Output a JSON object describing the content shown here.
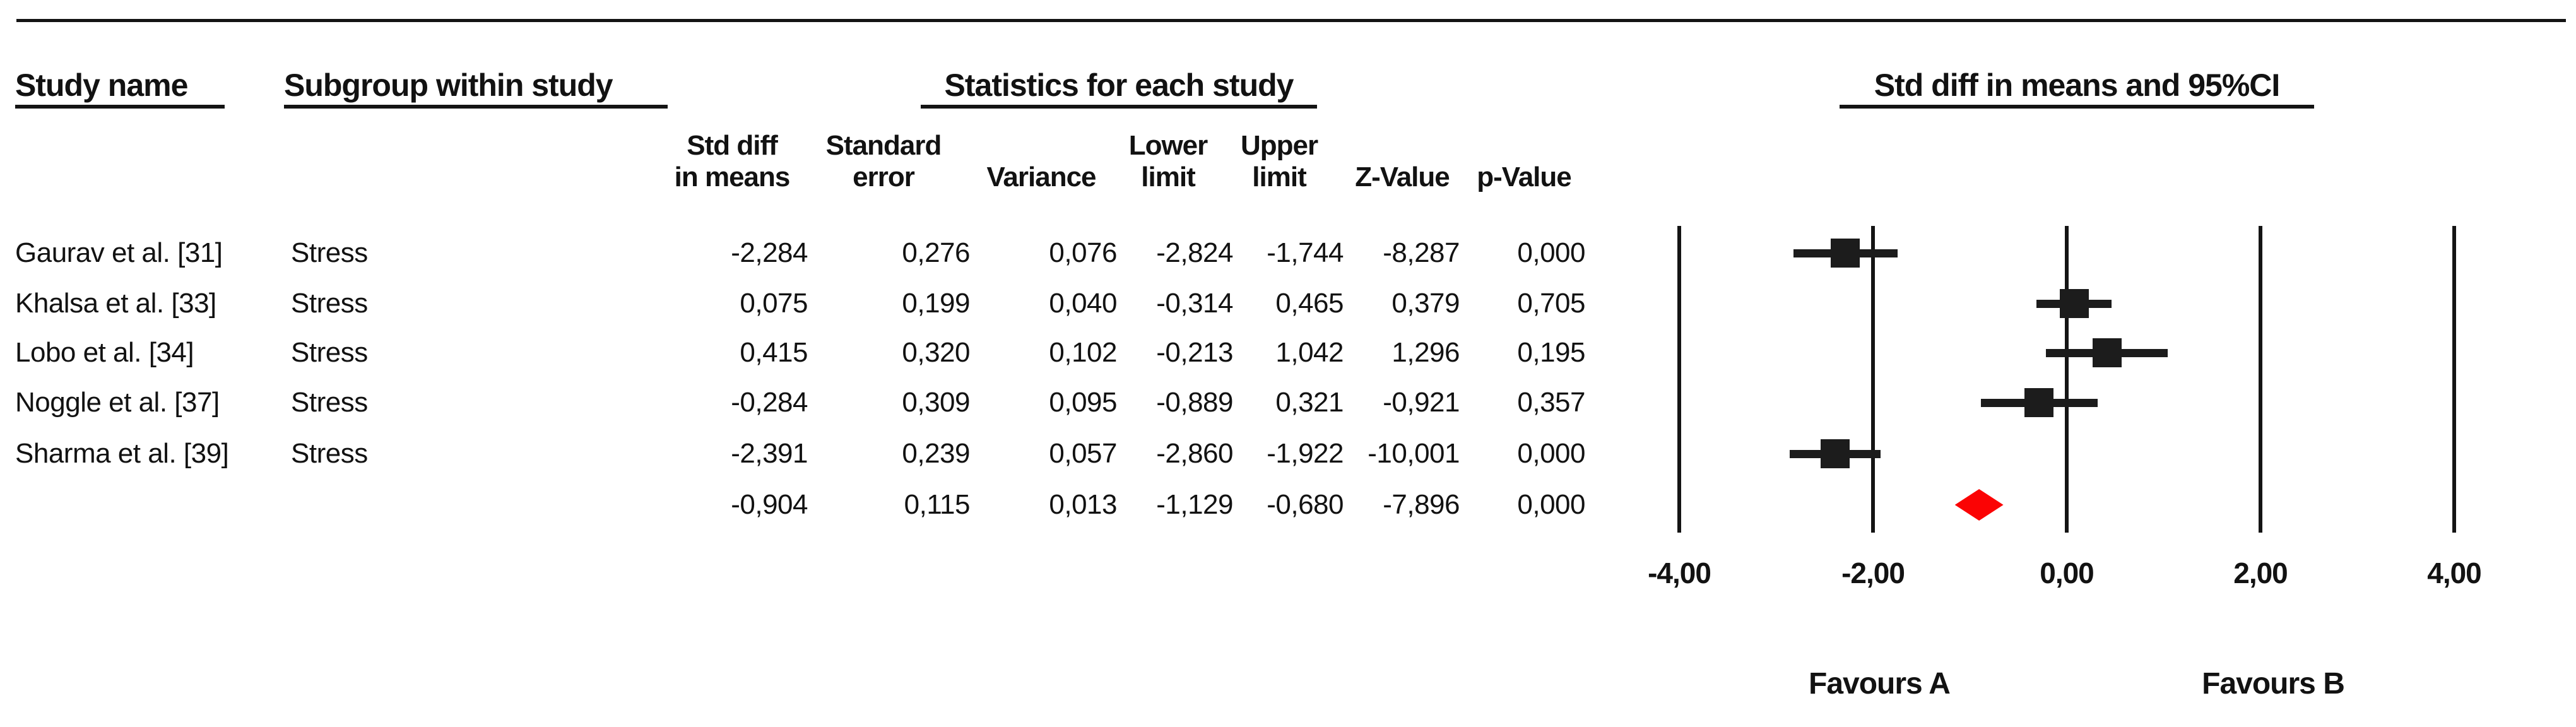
{
  "header": {
    "study_name": "Study name",
    "subgroup": "Subgroup within study",
    "statistics": "Statistics for each study",
    "plot_title": "Std diff in means and 95%CI"
  },
  "table": {
    "stat_columns": [
      {
        "line1": "Std diff",
        "line2": "in means"
      },
      {
        "line1": "Standard",
        "line2": "error"
      },
      {
        "line1": "",
        "line2": "Variance"
      },
      {
        "line1": "Lower",
        "line2": "limit"
      },
      {
        "line1": "Upper",
        "line2": "limit"
      },
      {
        "line1": "",
        "line2": "Z-Value"
      },
      {
        "line1": "",
        "line2": "p-Value"
      }
    ],
    "rows": [
      {
        "study": "Gaurav et al. [31]",
        "subgroup": "Stress",
        "values": [
          "-2,284",
          "0,276",
          "0,076",
          "-2,824",
          "-1,744",
          "-8,287",
          "0,000"
        ]
      },
      {
        "study": "Khalsa et al. [33]",
        "subgroup": "Stress",
        "values": [
          "0,075",
          "0,199",
          "0,040",
          "-0,314",
          "0,465",
          "0,379",
          "0,705"
        ]
      },
      {
        "study": "Lobo et al. [34]",
        "subgroup": "Stress",
        "values": [
          "0,415",
          "0,320",
          "0,102",
          "-0,213",
          "1,042",
          "1,296",
          "0,195"
        ]
      },
      {
        "study": "Noggle et al. [37]",
        "subgroup": "Stress",
        "values": [
          "-0,284",
          "0,309",
          "0,095",
          "-0,889",
          "0,321",
          "-0,921",
          "0,357"
        ]
      },
      {
        "study": "Sharma et al. [39]",
        "subgroup": "Stress",
        "values": [
          "-2,391",
          "0,239",
          "0,057",
          "-2,860",
          "-1,922",
          "-10,001",
          "0,000"
        ]
      },
      {
        "study": "",
        "subgroup": "",
        "values": [
          "-0,904",
          "0,115",
          "0,013",
          "-1,129",
          "-0,680",
          "-7,896",
          "0,000"
        ]
      }
    ]
  },
  "chart_data": {
    "type": "forest",
    "title": "Std diff in means and 95%CI",
    "xlabel": "Std diff in means",
    "x_ticks": [
      -4,
      -2,
      0,
      2,
      4
    ],
    "x_tick_labels": [
      "-4,00",
      "-2,00",
      "0,00",
      "2,00",
      "4,00"
    ],
    "xlim": [
      -4.6,
      4.6
    ],
    "grid": "vertical-lines-only",
    "studies": [
      {
        "name": "Gaurav et al. [31]",
        "subgroup": "Stress",
        "mean": -2.284,
        "lower": -2.824,
        "upper": -1.744
      },
      {
        "name": "Khalsa et al. [33]",
        "subgroup": "Stress",
        "mean": 0.075,
        "lower": -0.314,
        "upper": 0.465
      },
      {
        "name": "Lobo et al. [34]",
        "subgroup": "Stress",
        "mean": 0.415,
        "lower": -0.213,
        "upper": 1.042
      },
      {
        "name": "Noggle et al. [37]",
        "subgroup": "Stress",
        "mean": -0.284,
        "lower": -0.889,
        "upper": 0.321
      },
      {
        "name": "Sharma et al. [39]",
        "subgroup": "Stress",
        "mean": -2.391,
        "lower": -2.86,
        "upper": -1.922
      }
    ],
    "summary": {
      "mean": -0.904,
      "lower": -1.129,
      "upper": -0.68
    },
    "footer_left": "Favours A",
    "footer_right": "Favours B",
    "marker_color": "#1c1c1c",
    "line_color": "#141414",
    "summary_color": "#fb0304"
  }
}
